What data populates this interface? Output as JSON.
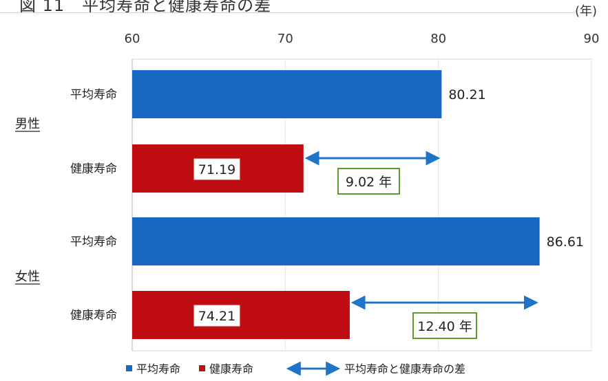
{
  "title": "図 11　平均寿命と健康寿命の差",
  "unit": "(年)",
  "colors": {
    "life": "#1668c0",
    "healthy": "#c00d14",
    "arrow": "#1f74c8",
    "diff_border": "#5d9a2a"
  },
  "chart_data": {
    "type": "bar",
    "orientation": "horizontal",
    "xlim": [
      60,
      90
    ],
    "xticks": [
      "60",
      "70",
      "80",
      "90"
    ],
    "groups": [
      "男性",
      "女性"
    ],
    "rows": [
      {
        "group": "男性",
        "label": "平均寿命",
        "series": "平均寿命",
        "value": 80.21,
        "value_label": "80.21"
      },
      {
        "group": "男性",
        "label": "健康寿命",
        "series": "健康寿命",
        "value": 71.19,
        "value_label": "71.19"
      },
      {
        "group": "女性",
        "label": "平均寿命",
        "series": "平均寿命",
        "value": 86.61,
        "value_label": "86.61"
      },
      {
        "group": "女性",
        "label": "健康寿命",
        "series": "健康寿命",
        "value": 74.21,
        "value_label": "74.21"
      }
    ],
    "differences": [
      {
        "group": "男性",
        "from": 71.19,
        "to": 80.21,
        "label": "9.02 年"
      },
      {
        "group": "女性",
        "from": 74.21,
        "to": 86.61,
        "label": "12.40 年"
      }
    ],
    "legend": {
      "position": "bottom",
      "items": [
        {
          "label": "平均寿命",
          "kind": "square",
          "series": "平均寿命"
        },
        {
          "label": "健康寿命",
          "kind": "square",
          "series": "健康寿命"
        },
        {
          "label": "平均寿命と健康寿命の差",
          "kind": "arrow"
        }
      ]
    }
  }
}
